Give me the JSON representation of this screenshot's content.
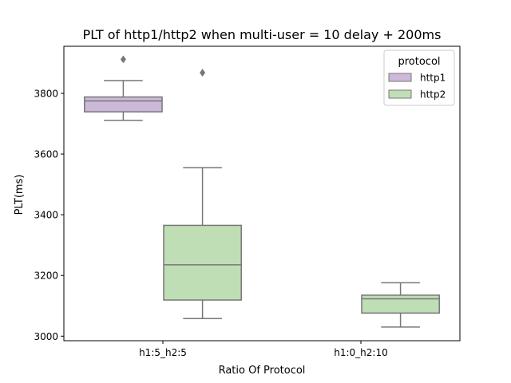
{
  "chart_data": {
    "type": "box",
    "title": "PLT of http1/http2 when multi-user = 10 delay + 200ms",
    "xlabel": "Ratio Of Protocol",
    "ylabel": "PLT(ms)",
    "categories": [
      "h1:5_h2:5",
      "h1:0_h2:10"
    ],
    "ylim": [
      2985,
      3955
    ],
    "yticks": [
      3000,
      3200,
      3400,
      3600,
      3800
    ],
    "legend": {
      "title": "protocol",
      "placement": "top-right",
      "entries": [
        "http1",
        "http2"
      ]
    },
    "series": [
      {
        "name": "http1",
        "color": "#ccb8d9",
        "boxes": [
          {
            "category": "h1:5_h2:5",
            "whisker_low": 3711,
            "q1": 3739,
            "median": 3775,
            "q3": 3788,
            "whisker_high": 3842,
            "outliers": [
              3912
            ]
          },
          null
        ]
      },
      {
        "name": "http2",
        "color": "#bfdeb6",
        "boxes": [
          {
            "category": "h1:5_h2:5",
            "whisker_low": 3058,
            "q1": 3119,
            "median": 3235,
            "q3": 3365,
            "whisker_high": 3555,
            "outliers": [
              3868
            ]
          },
          {
            "category": "h1:0_h2:10",
            "whisker_low": 3030,
            "q1": 3076,
            "median": 3123,
            "q3": 3135,
            "whisker_high": 3176,
            "outliers": []
          }
        ]
      }
    ],
    "grid": false
  }
}
